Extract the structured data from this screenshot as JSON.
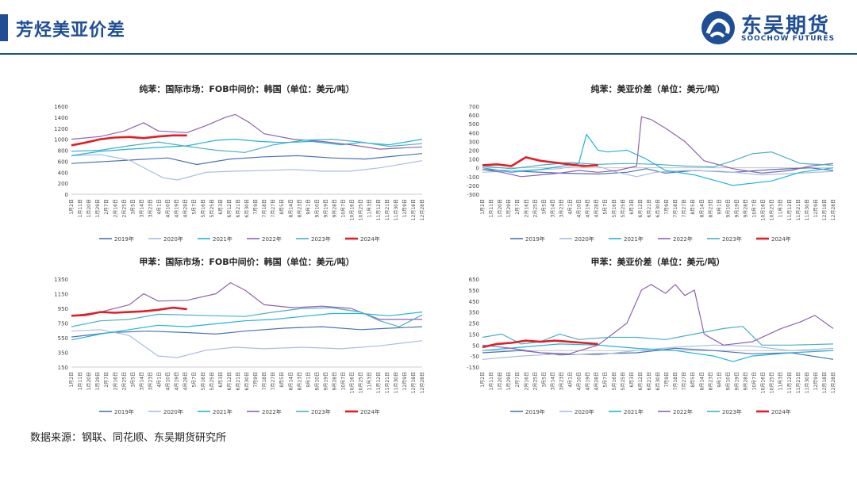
{
  "header": {
    "title": "芳烃美亚价差",
    "logo_cn": "东吴期货",
    "logo_en": "SOOCHOW FUTURES",
    "brand_color": "#1f4e96"
  },
  "footer": {
    "source": "数据来源：钢联、同花顺、东吴期货研究所"
  },
  "colors": {
    "2019年": "#4a72b8",
    "2020年": "#a9bde0",
    "2021年": "#22b4d8",
    "2022年": "#8e62b0",
    "2023年": "#4ab0c0",
    "2024年": "#e01e25"
  },
  "chart_data": [
    {
      "type": "line",
      "title": "纯苯：国际市场：FOB中间价：韩国（单位：美元/吨）",
      "ylim": [
        0,
        1600
      ],
      "yticks": [
        "1600",
        "1400",
        "1200",
        "1000",
        "800",
        "600",
        "400",
        "200",
        "0"
      ],
      "xticks": [
        "1月2日",
        "1月11日",
        "1月20日",
        "1月29日",
        "2月7日",
        "2月16日",
        "2月25日",
        "3月5日",
        "3月14日",
        "3月23日",
        "4月1日",
        "4月10日",
        "4月19日",
        "4月28日",
        "5月7日",
        "5月16日",
        "5月25日",
        "6月3日",
        "6月12日",
        "6月21日",
        "6月30日",
        "7月9日",
        "7月18日",
        "7月27日",
        "8月5日",
        "8月14日",
        "8月23日",
        "9月1日",
        "9月10日",
        "9月19日",
        "9月28日",
        "10月7日",
        "10月16日",
        "10月25日",
        "11月3日",
        "11月12日",
        "11月21日",
        "11月30日",
        "12月9日",
        "12月18日",
        "12月28日"
      ],
      "legend_labels": [
        "2019年",
        "2020年",
        "2021年",
        "2022年",
        "2023年",
        "2024年"
      ],
      "series": [
        {
          "name": "2019年",
          "days": [
            0,
            60,
            100,
            130,
            165,
            200,
            235,
            270,
            305,
            340,
            364
          ],
          "values": [
            560,
            620,
            660,
            540,
            640,
            680,
            700,
            660,
            640,
            700,
            740
          ]
        },
        {
          "name": "2020年",
          "days": [
            0,
            30,
            60,
            95,
            110,
            140,
            170,
            200,
            230,
            260,
            290,
            320,
            364
          ],
          "values": [
            700,
            720,
            620,
            300,
            260,
            400,
            420,
            430,
            450,
            420,
            420,
            480,
            610
          ]
        },
        {
          "name": "2021年",
          "days": [
            0,
            30,
            60,
            90,
            120,
            150,
            170,
            195,
            220,
            250,
            280,
            300,
            330,
            364
          ],
          "values": [
            700,
            780,
            820,
            850,
            880,
            980,
            1000,
            960,
            940,
            960,
            900,
            940,
            900,
            1000
          ]
        },
        {
          "name": "2022年",
          "days": [
            0,
            30,
            55,
            75,
            90,
            120,
            140,
            160,
            170,
            185,
            200,
            230,
            260,
            290,
            320,
            364
          ],
          "values": [
            1000,
            1050,
            1150,
            1300,
            1150,
            1120,
            1250,
            1400,
            1450,
            1300,
            1100,
            1000,
            960,
            900,
            820,
            860
          ]
        },
        {
          "name": "2023年",
          "days": [
            0,
            30,
            60,
            90,
            120,
            150,
            180,
            210,
            240,
            270,
            300,
            330,
            364
          ],
          "values": [
            780,
            800,
            880,
            950,
            870,
            800,
            760,
            900,
            980,
            1000,
            950,
            870,
            920
          ]
        },
        {
          "name": "2024年",
          "days": [
            0,
            15,
            30,
            45,
            60,
            75,
            90,
            105,
            120
          ],
          "values": [
            890,
            940,
            1000,
            1030,
            1040,
            1020,
            1050,
            1070,
            1070
          ]
        }
      ]
    },
    {
      "type": "line",
      "title": "纯苯：美亚价差（单位：美元/吨）",
      "ylim": [
        -300,
        700
      ],
      "yticks": [
        "700",
        "600",
        "500",
        "400",
        "300",
        "200",
        "100",
        "0",
        "-100",
        "-200",
        "-300"
      ],
      "xticks": [
        "1月2日",
        "1月11日",
        "1月20日",
        "1月29日",
        "2月7日",
        "2月16日",
        "2月25日",
        "3月5日",
        "3月14日",
        "3月23日",
        "4月1日",
        "4月10日",
        "4月19日",
        "4月28日",
        "5月7日",
        "5月16日",
        "5月25日",
        "6月3日",
        "6月12日",
        "6月21日",
        "6月30日",
        "7月9日",
        "7月18日",
        "7月27日",
        "8月5日",
        "8月14日",
        "8月23日",
        "9月1日",
        "9月10日",
        "9月19日",
        "9月28日",
        "10月7日",
        "10月16日",
        "10月25日",
        "11月3日",
        "11月12日",
        "11月21日",
        "11月30日",
        "12月9日",
        "12月18日",
        "12月28日"
      ],
      "legend_labels": [
        "2019年",
        "2020年",
        "2021年",
        "2022年",
        "2023年",
        "2024年"
      ],
      "series": [
        {
          "name": "2019年",
          "days": [
            0,
            40,
            80,
            120,
            150,
            170,
            190,
            220,
            260,
            300,
            340,
            364
          ],
          "values": [
            -20,
            -40,
            -60,
            -70,
            -50,
            -10,
            -60,
            -30,
            -50,
            -20,
            0,
            -30
          ]
        },
        {
          "name": "2020年",
          "days": [
            0,
            40,
            80,
            110,
            125,
            140,
            160,
            180,
            210,
            250,
            290,
            330,
            364
          ],
          "values": [
            -50,
            -30,
            -10,
            50,
            0,
            -50,
            -100,
            -50,
            -30,
            -40,
            -80,
            -60,
            -40
          ]
        },
        {
          "name": "2021年",
          "days": [
            0,
            30,
            60,
            100,
            108,
            120,
            130,
            150,
            170,
            190,
            220,
            260,
            300,
            330,
            364
          ],
          "values": [
            0,
            -50,
            -20,
            50,
            380,
            200,
            180,
            200,
            100,
            -30,
            -80,
            -200,
            -150,
            -50,
            0
          ]
        },
        {
          "name": "2022年",
          "days": [
            0,
            20,
            40,
            60,
            80,
            100,
            120,
            140,
            160,
            165,
            175,
            190,
            210,
            230,
            260,
            290,
            320,
            340,
            364
          ],
          "values": [
            -20,
            -50,
            -100,
            -80,
            -60,
            -30,
            -50,
            -30,
            20,
            580,
            550,
            450,
            300,
            80,
            -10,
            -60,
            -30,
            20,
            50
          ]
        },
        {
          "name": "2023年",
          "days": [
            0,
            30,
            60,
            90,
            120,
            150,
            180,
            210,
            240,
            260,
            280,
            300,
            330,
            364
          ],
          "values": [
            20,
            -10,
            30,
            60,
            40,
            50,
            40,
            20,
            10,
            80,
            160,
            180,
            50,
            30
          ]
        },
        {
          "name": "2024年",
          "days": [
            0,
            15,
            30,
            45,
            60,
            75,
            90,
            105,
            120
          ],
          "values": [
            30,
            40,
            20,
            120,
            80,
            60,
            40,
            20,
            30
          ]
        }
      ]
    },
    {
      "type": "line",
      "title": "甲苯：国际市场：FOB中间价：韩国（单位：美元/吨）",
      "ylim": [
        150,
        1350
      ],
      "yticks": [
        "1350",
        "1150",
        "950",
        "750",
        "550",
        "350",
        "150"
      ],
      "xticks": [
        "1月2日",
        "1月11日",
        "1月20日",
        "1月29日",
        "2月7日",
        "2月16日",
        "2月25日",
        "3月5日",
        "3月14日",
        "3月23日",
        "4月1日",
        "4月10日",
        "4月19日",
        "4月28日",
        "5月7日",
        "5月16日",
        "5月25日",
        "6月3日",
        "6月12日",
        "6月21日",
        "6月30日",
        "7月9日",
        "7月18日",
        "7月27日",
        "8月5日",
        "8月14日",
        "8月23日",
        "9月1日",
        "9月10日",
        "9月19日",
        "9月28日",
        "10月7日",
        "10月16日",
        "10月25日",
        "11月3日",
        "11月12日",
        "11月21日",
        "11月30日",
        "12月9日",
        "12月18日",
        "12月28日"
      ],
      "legend_labels": [
        "2019年",
        "2020年",
        "2021年",
        "2022年",
        "2023年",
        "2024年"
      ],
      "series": [
        {
          "name": "2019年",
          "days": [
            0,
            40,
            80,
            120,
            150,
            180,
            220,
            260,
            300,
            330,
            364
          ],
          "values": [
            560,
            620,
            640,
            620,
            600,
            640,
            680,
            700,
            660,
            680,
            700
          ]
        },
        {
          "name": "2020年",
          "days": [
            0,
            30,
            60,
            90,
            110,
            140,
            170,
            200,
            240,
            280,
            320,
            364
          ],
          "values": [
            640,
            660,
            580,
            300,
            280,
            380,
            420,
            400,
            420,
            400,
            440,
            510
          ]
        },
        {
          "name": "2021年",
          "days": [
            0,
            30,
            60,
            90,
            120,
            150,
            180,
            210,
            240,
            270,
            300,
            330,
            364
          ],
          "values": [
            520,
            600,
            660,
            720,
            700,
            740,
            780,
            800,
            840,
            880,
            880,
            850,
            900
          ]
        },
        {
          "name": "2022年",
          "days": [
            0,
            30,
            60,
            75,
            90,
            120,
            150,
            165,
            180,
            200,
            230,
            260,
            290,
            320,
            364
          ],
          "values": [
            850,
            900,
            1000,
            1150,
            1050,
            1060,
            1150,
            1300,
            1200,
            1000,
            960,
            980,
            950,
            800,
            800
          ]
        },
        {
          "name": "2023年",
          "days": [
            0,
            30,
            60,
            90,
            120,
            150,
            180,
            210,
            240,
            270,
            300,
            320,
            340,
            364
          ],
          "values": [
            700,
            780,
            800,
            870,
            860,
            850,
            840,
            900,
            950,
            960,
            900,
            780,
            700,
            860
          ]
        },
        {
          "name": "2024年",
          "days": [
            0,
            15,
            30,
            45,
            60,
            75,
            90,
            105,
            120
          ],
          "values": [
            850,
            860,
            900,
            890,
            900,
            910,
            930,
            960,
            940
          ]
        }
      ]
    },
    {
      "type": "line",
      "title": "甲苯：美亚价差（单位：美元/吨）",
      "ylim": [
        -150,
        650
      ],
      "yticks": [
        "650",
        "550",
        "450",
        "350",
        "250",
        "150",
        "50",
        "-50",
        "-150"
      ],
      "xticks": [
        "1月2日",
        "1月11日",
        "1月20日",
        "1月29日",
        "2月7日",
        "2月16日",
        "2月25日",
        "3月5日",
        "3月14日",
        "3月23日",
        "4月1日",
        "4月10日",
        "4月19日",
        "4月28日",
        "5月7日",
        "5月16日",
        "5月25日",
        "6月3日",
        "6月12日",
        "6月21日",
        "6月30日",
        "7月9日",
        "7月18日",
        "7月27日",
        "8月5日",
        "8月14日",
        "8月23日",
        "9月1日",
        "9月10日",
        "9月19日",
        "9月28日",
        "10月7日",
        "10月16日",
        "10月25日",
        "11月3日",
        "11月12日",
        "11月21日",
        "11月30日",
        "12月9日",
        "12月18日",
        "12月28日"
      ],
      "legend_labels": [
        "2019年",
        "2020年",
        "2021年",
        "2022年",
        "2023年",
        "2024年"
      ],
      "series": [
        {
          "name": "2019年",
          "days": [
            0,
            40,
            80,
            120,
            160,
            200,
            240,
            280,
            320,
            364
          ],
          "values": [
            -20,
            0,
            -40,
            -30,
            -20,
            20,
            0,
            -30,
            -20,
            -80
          ]
        },
        {
          "name": "2020年",
          "days": [
            0,
            40,
            80,
            120,
            160,
            200,
            240,
            280,
            320,
            364
          ],
          "values": [
            -80,
            -50,
            -30,
            -40,
            0,
            30,
            50,
            40,
            0,
            20
          ]
        },
        {
          "name": "2021年",
          "days": [
            0,
            40,
            80,
            120,
            160,
            200,
            240,
            260,
            280,
            320,
            364
          ],
          "values": [
            0,
            30,
            60,
            50,
            20,
            0,
            -50,
            -100,
            -50,
            -20,
            0
          ]
        },
        {
          "name": "2022年",
          "days": [
            0,
            30,
            60,
            90,
            120,
            150,
            165,
            175,
            190,
            200,
            210,
            220,
            230,
            250,
            280,
            310,
            330,
            345,
            364
          ],
          "values": [
            50,
            20,
            -20,
            -30,
            50,
            250,
            550,
            600,
            520,
            600,
            500,
            550,
            150,
            50,
            80,
            200,
            260,
            320,
            200
          ]
        },
        {
          "name": "2023年",
          "days": [
            0,
            20,
            40,
            60,
            80,
            100,
            130,
            160,
            190,
            220,
            250,
            270,
            290,
            320,
            364
          ],
          "values": [
            120,
            150,
            60,
            80,
            150,
            100,
            120,
            120,
            100,
            150,
            200,
            220,
            50,
            50,
            60
          ]
        },
        {
          "name": "2024年",
          "days": [
            0,
            15,
            30,
            45,
            60,
            75,
            90,
            105,
            120
          ],
          "values": [
            30,
            60,
            70,
            90,
            80,
            90,
            80,
            70,
            60
          ]
        }
      ]
    }
  ]
}
